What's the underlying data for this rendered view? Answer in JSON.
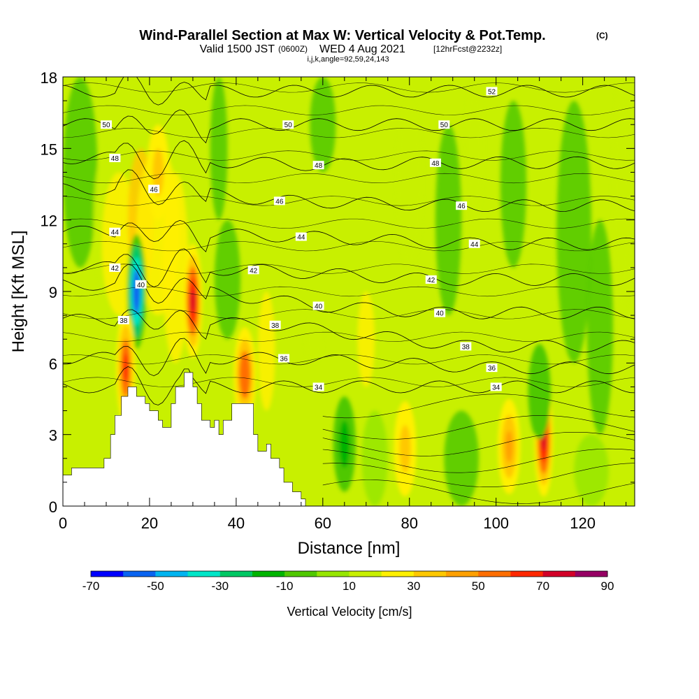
{
  "header": {
    "title": "Wind-Parallel Section at Max W: Vertical Velocity & Pot.Temp.",
    "title_mark": "(C)",
    "valid_prefix": "Valid 1500 JST",
    "valid_z": "(0600Z)",
    "valid_date": "WED 4 Aug 2021",
    "forecast": "[12hrFcst@2232z]",
    "params": "i,j,k,angle=92,59,24,143"
  },
  "chart_data": {
    "type": "heatmap",
    "xlabel": "Distance [nm]",
    "ylabel": "Height [Kft MSL]",
    "xlim": [
      0,
      132
    ],
    "ylim": [
      0,
      18
    ],
    "x_ticks": [
      0,
      20,
      40,
      60,
      80,
      100,
      120
    ],
    "y_ticks": [
      0,
      3,
      6,
      9,
      12,
      15,
      18
    ],
    "colorbar": {
      "label": "Vertical Velocity [cm/s]",
      "tick_labels": [
        "-70",
        "-50",
        "-30",
        "-10",
        "10",
        "30",
        "50",
        "70",
        "90"
      ],
      "bounds": [
        -70,
        90
      ],
      "colors": [
        "#0000ff",
        "#0a64f0",
        "#00b4f0",
        "#00e6c8",
        "#00c864",
        "#00b400",
        "#50c800",
        "#96e600",
        "#c8f000",
        "#fff000",
        "#ffc800",
        "#ffa000",
        "#ff6e00",
        "#ff2800",
        "#d20028",
        "#960064",
        "#640096"
      ]
    },
    "vertical_velocity_features": [
      {
        "x": 17,
        "z": 9.0,
        "w": -65,
        "note": "downdraft core"
      },
      {
        "x": 30,
        "z": 8.6,
        "w": 70,
        "note": "updraft core"
      },
      {
        "x": 14.5,
        "z": 5.8,
        "w": 60
      },
      {
        "x": 42,
        "z": 5.5,
        "w": 50
      },
      {
        "x": 111,
        "z": 2.8,
        "w": 70
      },
      {
        "x": 103,
        "z": 2.5,
        "w": 40
      },
      {
        "x": 79,
        "z": 2.4,
        "w": 25
      },
      {
        "x": 65,
        "z": 2.6,
        "w": -25
      },
      {
        "x": 22,
        "z": 14,
        "w": 25
      },
      {
        "x": 110,
        "z": 4.8,
        "w": -15
      }
    ],
    "theta_contour_labels": [
      {
        "text": "34",
        "x": 59,
        "z": 5.0
      },
      {
        "text": "34",
        "x": 100,
        "z": 5.0
      },
      {
        "text": "36",
        "x": 51,
        "z": 6.2
      },
      {
        "text": "36",
        "x": 99,
        "z": 5.8
      },
      {
        "text": "38",
        "x": 14,
        "z": 7.8
      },
      {
        "text": "38",
        "x": 49,
        "z": 7.6
      },
      {
        "text": "38",
        "x": 93,
        "z": 6.7
      },
      {
        "text": "40",
        "x": 18,
        "z": 9.3
      },
      {
        "text": "40",
        "x": 59,
        "z": 8.4
      },
      {
        "text": "40",
        "x": 87,
        "z": 8.1
      },
      {
        "text": "42",
        "x": 12,
        "z": 10.0
      },
      {
        "text": "42",
        "x": 44,
        "z": 9.9
      },
      {
        "text": "42",
        "x": 85,
        "z": 9.5
      },
      {
        "text": "44",
        "x": 12,
        "z": 11.5
      },
      {
        "text": "44",
        "x": 55,
        "z": 11.3
      },
      {
        "text": "44",
        "x": 95,
        "z": 11.0
      },
      {
        "text": "46",
        "x": 21,
        "z": 13.3
      },
      {
        "text": "46",
        "x": 50,
        "z": 12.8
      },
      {
        "text": "46",
        "x": 92,
        "z": 12.6
      },
      {
        "text": "48",
        "x": 12,
        "z": 14.6
      },
      {
        "text": "48",
        "x": 59,
        "z": 14.3
      },
      {
        "text": "48",
        "x": 86,
        "z": 14.4
      },
      {
        "text": "50",
        "x": 10,
        "z": 16.0
      },
      {
        "text": "50",
        "x": 52,
        "z": 16.0
      },
      {
        "text": "50",
        "x": 88,
        "z": 16.0
      },
      {
        "text": "52",
        "x": 99,
        "z": 17.4
      }
    ],
    "terrain_profile": [
      [
        0,
        1.3
      ],
      [
        2,
        1.3
      ],
      [
        2,
        1.6
      ],
      [
        9.5,
        1.6
      ],
      [
        9.5,
        2.0
      ],
      [
        11,
        2.0
      ],
      [
        11,
        3.0
      ],
      [
        12,
        3.0
      ],
      [
        12,
        3.8
      ],
      [
        13.5,
        3.8
      ],
      [
        13.5,
        4.6
      ],
      [
        15,
        4.6
      ],
      [
        15,
        5.0
      ],
      [
        17,
        5.0
      ],
      [
        17,
        4.6
      ],
      [
        19,
        4.6
      ],
      [
        19,
        4.3
      ],
      [
        20,
        4.3
      ],
      [
        20,
        4.0
      ],
      [
        22,
        4.0
      ],
      [
        22,
        3.6
      ],
      [
        23,
        3.6
      ],
      [
        23,
        3.3
      ],
      [
        25,
        3.3
      ],
      [
        25,
        4.3
      ],
      [
        26,
        4.3
      ],
      [
        26,
        5.0
      ],
      [
        28,
        5.0
      ],
      [
        28,
        5.6
      ],
      [
        30,
        5.6
      ],
      [
        30,
        5.0
      ],
      [
        31,
        5.0
      ],
      [
        31,
        4.3
      ],
      [
        32,
        4.3
      ],
      [
        32,
        3.6
      ],
      [
        34,
        3.6
      ],
      [
        34,
        3.3
      ],
      [
        35,
        3.3
      ],
      [
        35,
        3.6
      ],
      [
        36,
        3.6
      ],
      [
        36,
        3.0
      ],
      [
        37,
        3.0
      ],
      [
        37,
        3.6
      ],
      [
        39,
        3.6
      ],
      [
        39,
        4.3
      ],
      [
        44,
        4.3
      ],
      [
        44,
        3.0
      ],
      [
        45,
        3.0
      ],
      [
        45,
        2.3
      ],
      [
        47,
        2.3
      ],
      [
        47,
        2.6
      ],
      [
        48,
        2.6
      ],
      [
        48,
        2.0
      ],
      [
        50,
        2.0
      ],
      [
        50,
        1.6
      ],
      [
        51,
        1.6
      ],
      [
        51,
        1.0
      ],
      [
        53,
        1.0
      ],
      [
        53,
        0.6
      ],
      [
        55,
        0.6
      ],
      [
        55,
        0.3
      ],
      [
        56,
        0.3
      ],
      [
        56,
        0
      ]
    ]
  }
}
